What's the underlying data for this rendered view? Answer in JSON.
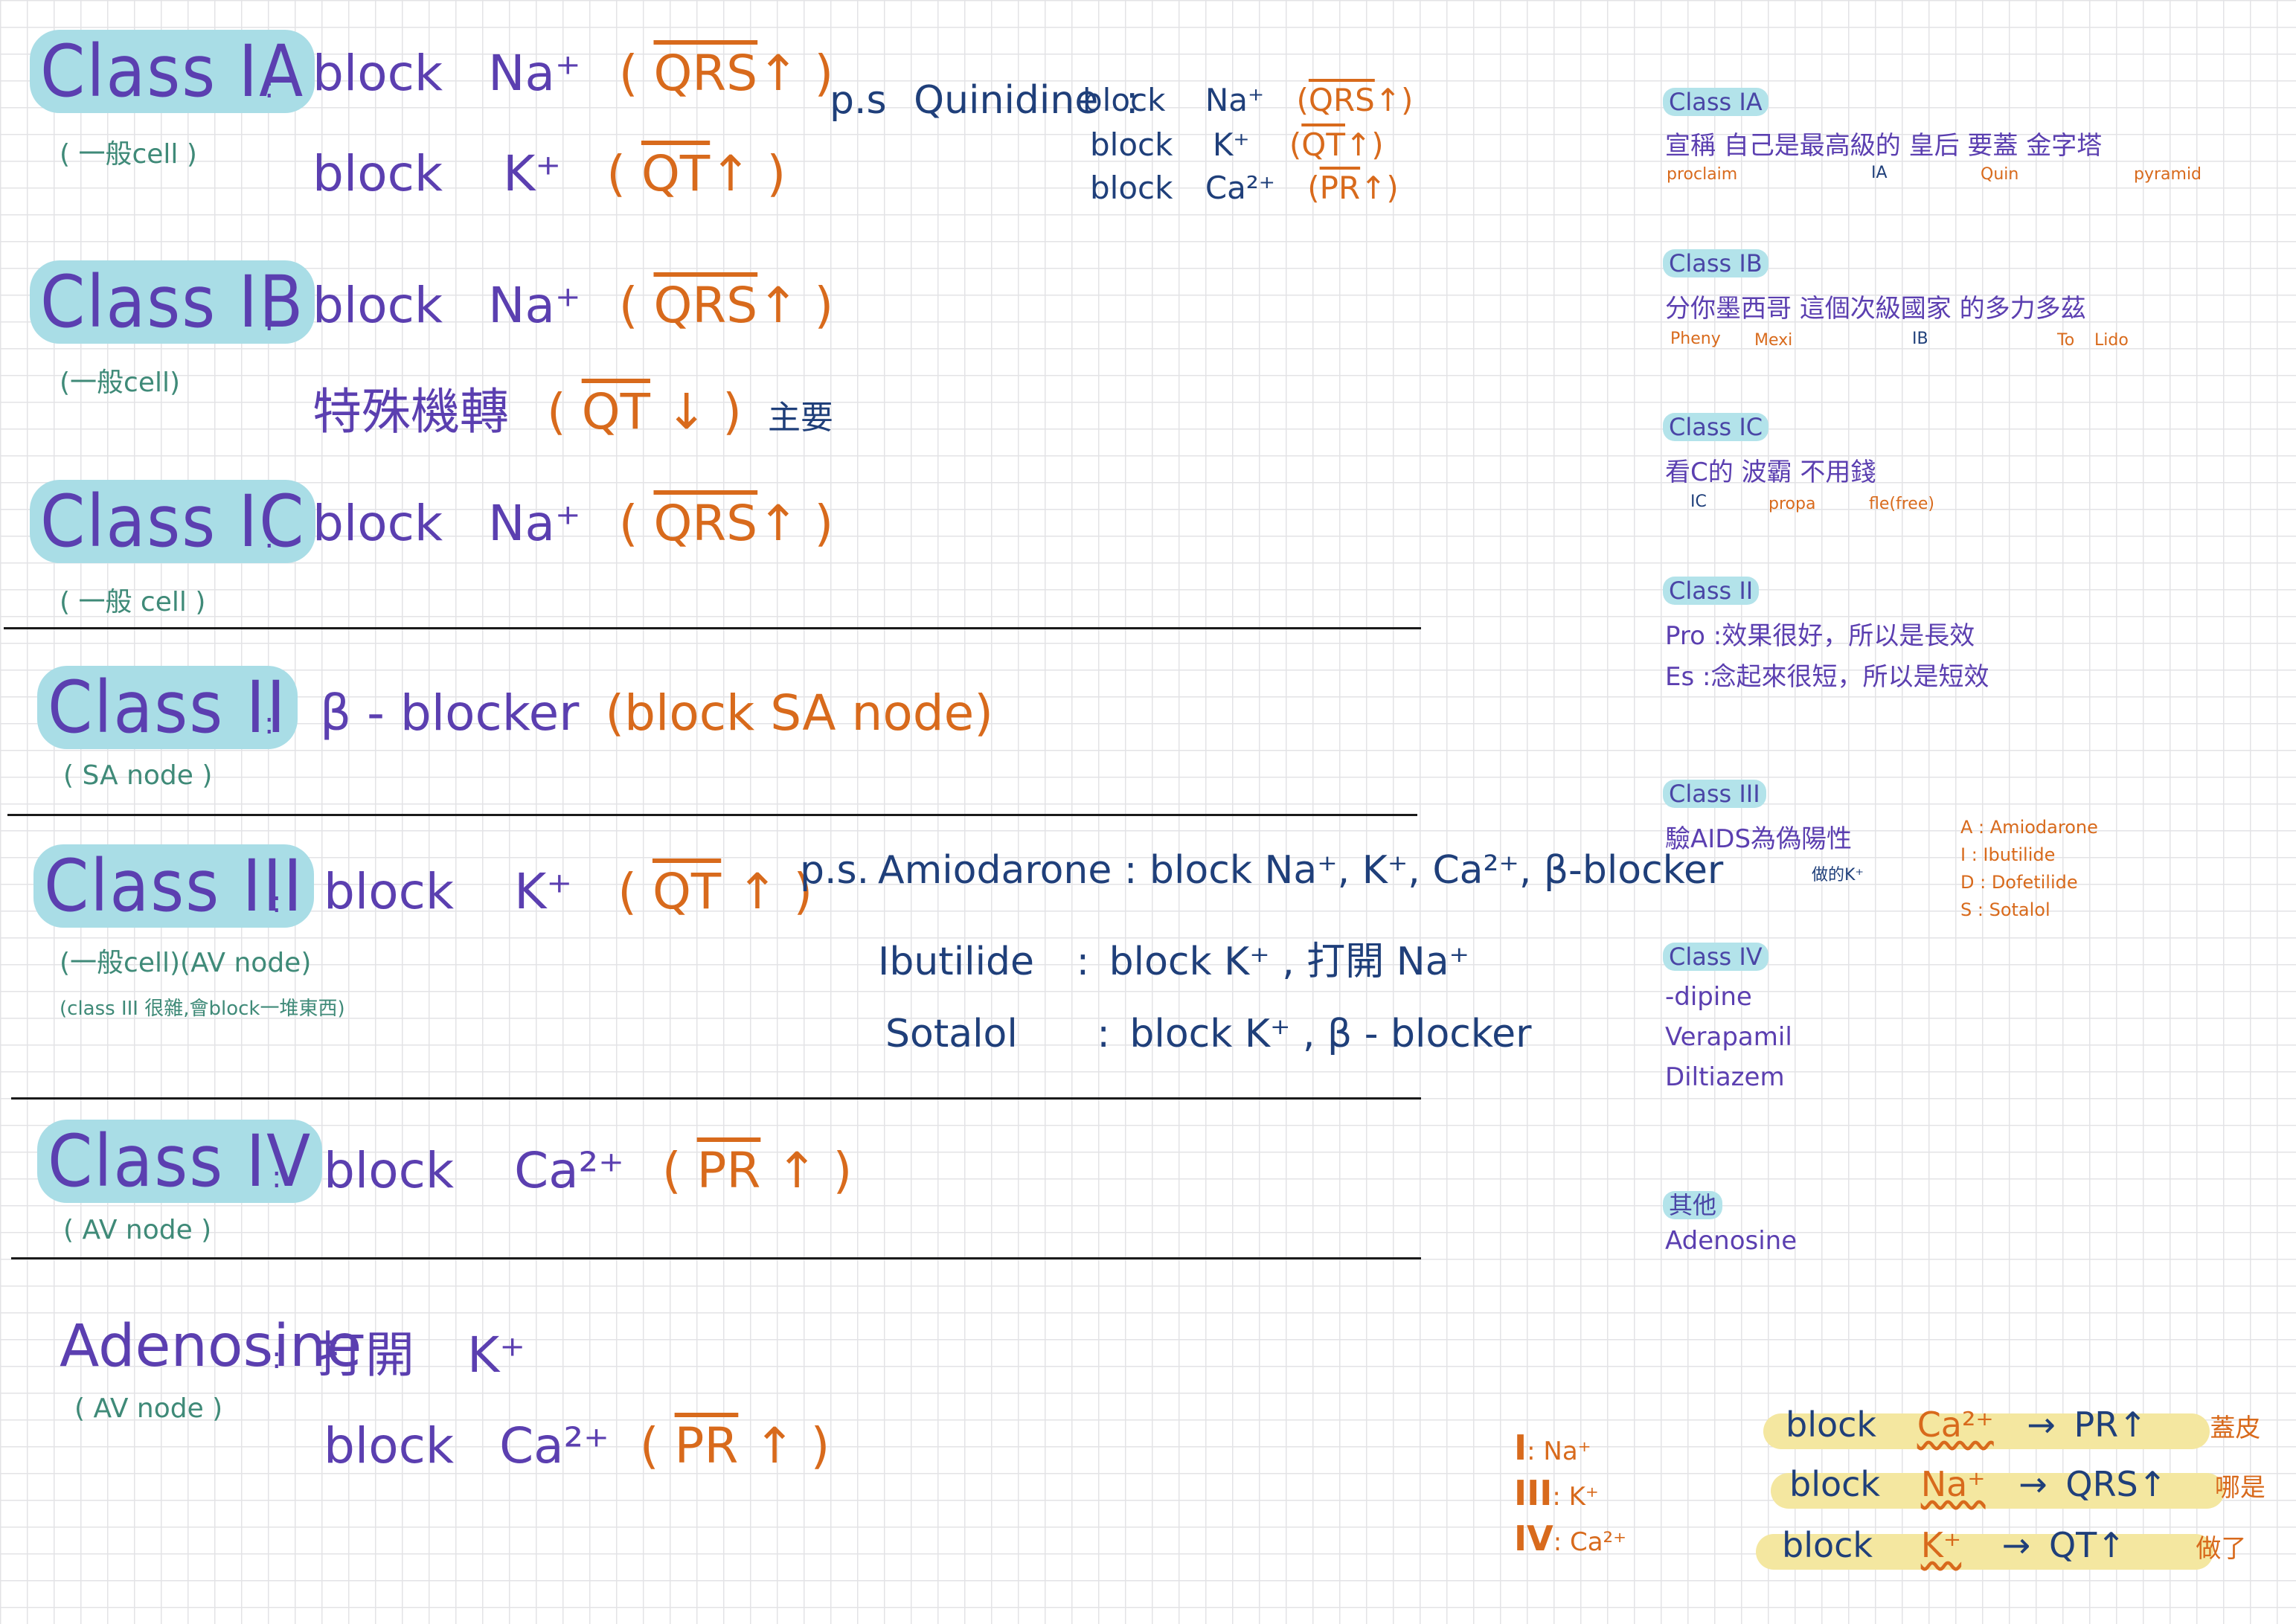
{
  "classes": {
    "ia": {
      "label": "Class IA",
      "sub": "( 一般cell )",
      "line1": {
        "verb": "block",
        "ion": "Na⁺",
        "effect": "QRS",
        "arrow": "↑"
      },
      "line2": {
        "verb": "block",
        "ion": "K⁺",
        "effect": "QT",
        "arrow": "↑"
      },
      "ps": {
        "prefix": "p.s",
        "drug": "Quinidine",
        "sep": ":",
        "rows": [
          {
            "verb": "block",
            "ion": "Na⁺",
            "effect": "QRS",
            "arrow": "↑"
          },
          {
            "verb": "block",
            "ion": "K⁺",
            "effect": "QT",
            "arrow": "↑"
          },
          {
            "verb": "block",
            "ion": "Ca²⁺",
            "effect": "PR",
            "arrow": "↑"
          }
        ]
      }
    },
    "ib": {
      "label": "Class IB",
      "sub": "(一般cell)",
      "line1": {
        "verb": "block",
        "ion": "Na⁺",
        "effect": "QRS",
        "arrow": "↑"
      },
      "line2": {
        "verb": "特殊機轉",
        "effect": "QT",
        "arrow": "↓",
        "note": "主要"
      }
    },
    "ic": {
      "label": "Class IC",
      "sub": "( 一般 cell )",
      "line1": {
        "verb": "block",
        "ion": "Na⁺",
        "effect": "QRS",
        "arrow": "↑"
      }
    },
    "ii": {
      "label": "Class II",
      "sub": "( SA node )",
      "line1": {
        "text": "β - blocker",
        "paren": "(block SA node)"
      }
    },
    "iii": {
      "label": "Class III",
      "sub": "(一般cell)(AV node)",
      "sub2": "(class III 很雜,會block一堆東西)",
      "line1": {
        "verb": "block",
        "ion": "K⁺",
        "effect": "QT",
        "arrow": "↑"
      },
      "ps": {
        "prefix": "p.s.",
        "rows": [
          {
            "drug": "Amiodarone",
            "sep": ":",
            "text": "block Na⁺, K⁺, Ca²⁺, β-blocker"
          },
          {
            "drug": "Ibutilide",
            "sep": ":",
            "text": "block K⁺ , 打開 Na⁺"
          },
          {
            "drug": "Sotalol",
            "sep": ":",
            "text": "block K⁺ , β - blocker"
          }
        ]
      }
    },
    "iv": {
      "label": "Class IV",
      "sub": "( AV node )",
      "line1": {
        "verb": "block",
        "ion": "Ca²⁺",
        "effect": "PR",
        "arrow": "↑"
      }
    },
    "adenosine": {
      "label": "Adenosine",
      "sub": "( AV node )",
      "line1": {
        "verb": "打開",
        "ion": "K⁺"
      },
      "line2": {
        "verb": "block",
        "ion": "Ca²⁺",
        "effect": "PR",
        "arrow": "↑"
      }
    }
  },
  "mnemonics": {
    "ia": {
      "label": "Class IA",
      "text": "宣稱 自己是最高級的 皇后 要蓋 金字塔",
      "glosses": [
        "proclaim",
        "IA",
        "Quin",
        "pyramid"
      ]
    },
    "ib": {
      "label": "Class IB",
      "text": "分你墨西哥 這個次級國家 的多力多茲",
      "glosses": [
        "Pheny",
        "Mexi",
        "IB",
        "To",
        "Lido"
      ]
    },
    "ic": {
      "label": "Class IC",
      "text": "看C的 波霸 不用錢",
      "glosses": [
        "IC",
        "propa",
        "fle(free)"
      ]
    },
    "ii": {
      "label": "Class II",
      "line1": "Pro :效果很好，所以是長效",
      "line2": "Es :念起來很短，所以是短效"
    },
    "iii": {
      "label": "Class III",
      "text": "驗AIDS為偽陽性",
      "gloss": "做的K⁺",
      "key": [
        {
          "letter": "A",
          "drug": "Amiodarone"
        },
        {
          "letter": "I",
          "drug": "Ibutilide"
        },
        {
          "letter": "D",
          "drug": "Dofetilide"
        },
        {
          "letter": "S",
          "drug": "Sotalol"
        }
      ]
    },
    "iv": {
      "label": "Class IV",
      "items": [
        "-dipine",
        "Verapamil",
        "Diltiazem"
      ]
    },
    "other": {
      "label": "其他",
      "items": [
        "Adenosine"
      ]
    }
  },
  "summary": {
    "ions": [
      {
        "cls": "I",
        "ion": ": Na⁺"
      },
      {
        "cls": "III",
        "ion": ": K⁺"
      },
      {
        "cls": "IV",
        "ion": ": Ca²⁺"
      }
    ],
    "rows": [
      {
        "verb": "block",
        "ion": "Ca²⁺",
        "arrow": "→",
        "effect": "PR↑",
        "memo": "蓋皮"
      },
      {
        "verb": "block",
        "ion": "Na⁺",
        "arrow": "→",
        "effect": "QRS↑",
        "memo": "哪是"
      },
      {
        "verb": "block",
        "ion": "K⁺",
        "arrow": "→",
        "effect": "QT↑",
        "memo": "做了"
      }
    ]
  },
  "colors": {
    "purple": "#5b3fb0",
    "orange": "#d86a1c",
    "navy": "#1f3f7a",
    "green": "#3f8a78",
    "highlight_teal": "#a9dde6",
    "highlight_yellow": "#f4e7a0"
  }
}
